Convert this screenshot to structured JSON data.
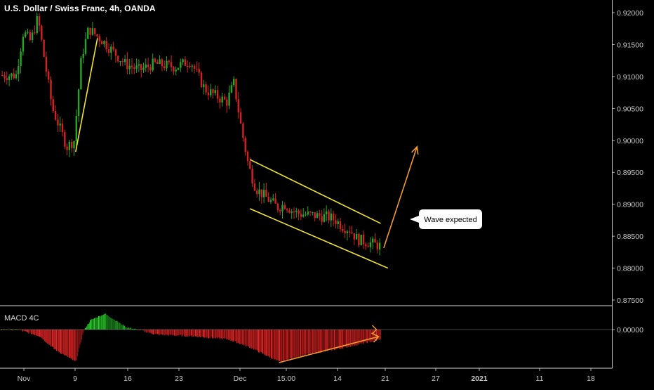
{
  "header": {
    "title": "U.S. Dollar / Swiss Franc, 4h, OANDA"
  },
  "macd": {
    "label": "MACD 4C",
    "zero_label": "0.00000"
  },
  "annotation": {
    "text": "Wave expected"
  },
  "colors": {
    "background": "#000000",
    "bull": "#26a826",
    "bear": "#d42222",
    "axis_text": "#c8c8c8",
    "trendline": "#f2e62e",
    "arrow": "#f29a2e",
    "divider": "#d9d9d9"
  },
  "chart_data": {
    "type": "candlestick",
    "title": "U.S. Dollar / Swiss Franc, 4h, OANDA",
    "price_axis": {
      "range": [
        0.8747,
        0.9215
      ],
      "ticks": [
        "0.92000",
        "0.91500",
        "0.91000",
        "0.90500",
        "0.90000",
        "0.89500",
        "0.89000",
        "0.88500",
        "0.88000",
        "0.87500"
      ]
    },
    "time_axis": {
      "ticks": [
        "Nov",
        "9",
        "16",
        "23",
        "Dec",
        "15:00",
        "14",
        "21",
        "27",
        "2021",
        "11",
        "18"
      ],
      "bold_ticks": [
        "2021"
      ]
    },
    "price_path": [
      [
        "Nov 1",
        0.9102
      ],
      [
        "Nov 2",
        0.917
      ],
      [
        "Nov 3",
        0.9155
      ],
      [
        "Nov 4",
        0.9192
      ],
      [
        "Nov 5",
        0.912
      ],
      [
        "Nov 6",
        0.905
      ],
      [
        "Nov 8",
        0.899
      ],
      [
        "Nov 9",
        0.9
      ],
      [
        "Nov 10",
        0.913
      ],
      [
        "Nov 11",
        0.9175
      ],
      [
        "Nov 13",
        0.9155
      ],
      [
        "Nov 16",
        0.912
      ],
      [
        "Nov 18",
        0.911
      ],
      [
        "Nov 20",
        0.912
      ],
      [
        "Nov 23",
        0.9115
      ],
      [
        "Nov 25",
        0.9125
      ],
      [
        "Nov 27",
        0.908
      ],
      [
        "Nov 30",
        0.906
      ],
      [
        "Dec 1",
        0.909
      ],
      [
        "Dec 2",
        0.902
      ],
      [
        "Dec 3",
        0.896
      ],
      [
        "Dec 4",
        0.8925
      ],
      [
        "Dec 7",
        0.8895
      ],
      [
        "Dec 8",
        0.89
      ],
      [
        "Dec 9",
        0.889
      ],
      [
        "Dec 10",
        0.8885
      ],
      [
        "Dec 14",
        0.888
      ],
      [
        "Dec 15",
        0.8875
      ],
      [
        "Dec 16",
        0.8865
      ],
      [
        "Dec 17",
        0.886
      ],
      [
        "Dec 18",
        0.8845
      ],
      [
        "Dec 21",
        0.8835
      ]
    ],
    "drawings": [
      {
        "type": "trendline",
        "from": [
          "Nov 9",
          0.8982
        ],
        "to": [
          "Nov 12",
          0.916
        ]
      },
      {
        "type": "channel_upper",
        "from": [
          "Dec 3",
          0.897
        ],
        "to": [
          "Dec 21",
          0.887
        ]
      },
      {
        "type": "channel_lower",
        "from": [
          "Dec 3",
          0.8893
        ],
        "to": [
          "Dec 22",
          0.88
        ]
      },
      {
        "type": "arrow",
        "from": [
          "Dec 22",
          0.8826
        ],
        "to": [
          "Dec 26",
          0.899
        ]
      }
    ],
    "macd_histogram": {
      "zero_line": 0,
      "shape": [
        [
          "Nov 1",
          0.0
        ],
        [
          "Nov 4",
          -0.2
        ],
        [
          "Nov 6",
          -0.6
        ],
        [
          "Nov 9",
          -1.0
        ],
        [
          "Nov 10",
          -0.1
        ],
        [
          "Nov 11",
          0.45
        ],
        [
          "Nov 13",
          0.75
        ],
        [
          "Nov 16",
          0.1
        ],
        [
          "Nov 20",
          -0.15
        ],
        [
          "Nov 25",
          -0.2
        ],
        [
          "Nov 30",
          -0.3
        ],
        [
          "Dec 3",
          -0.55
        ],
        [
          "Dec 7",
          -1.0
        ],
        [
          "Dec 10",
          -0.8
        ],
        [
          "Dec 15",
          -0.6
        ],
        [
          "Dec 18",
          -0.45
        ],
        [
          "Dec 21",
          -0.3
        ]
      ]
    }
  }
}
